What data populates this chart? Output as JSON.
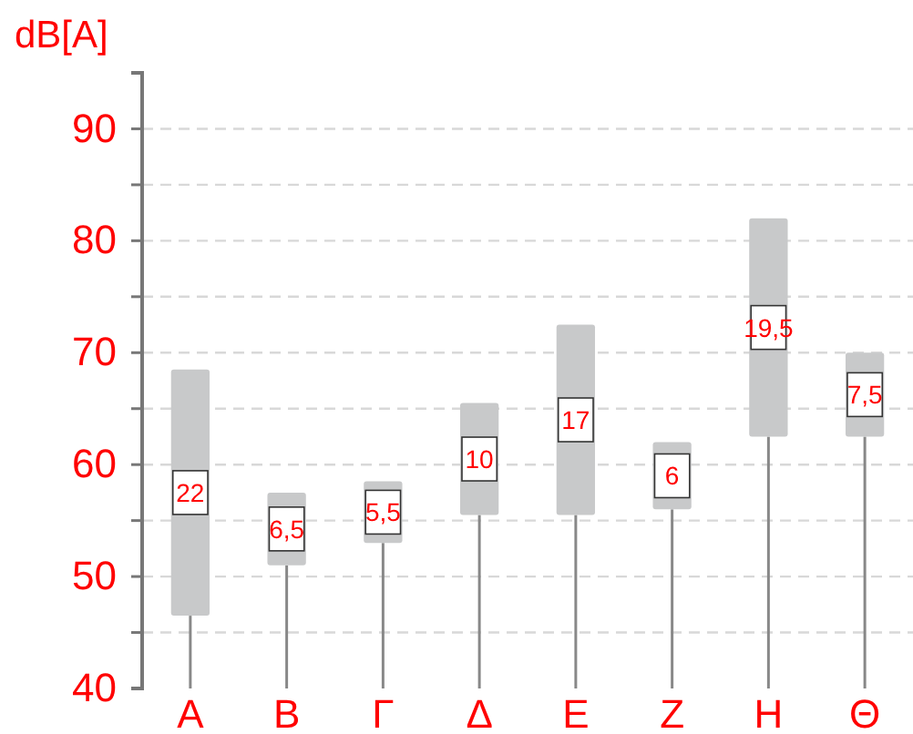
{
  "chart_data": {
    "type": "bar",
    "ylabel": "dB[A]",
    "categories": [
      "Α",
      "Β",
      "Γ",
      "Δ",
      "Ε",
      "Ζ",
      "Η",
      "Θ"
    ],
    "base": [
      46.5,
      51,
      53,
      55.5,
      55.5,
      56,
      62.5,
      62.5
    ],
    "values": [
      22,
      6.5,
      5.5,
      10,
      17,
      6,
      19.5,
      7.5
    ],
    "value_labels": [
      "22",
      "6,5",
      "5,5",
      "10",
      "17",
      "6",
      "19,5",
      "7,5"
    ],
    "data_labels": true,
    "color": "#c8c9ca",
    "ylim": [
      40,
      95
    ],
    "yticks": [
      40,
      {
        "value": 45,
        "label": null
      },
      50,
      {
        "value": 55,
        "label": null
      },
      60,
      {
        "value": 65,
        "label": null
      },
      70,
      {
        "value": 75,
        "label": null
      },
      80,
      {
        "value": 85,
        "label": null
      },
      90
    ],
    "grid": "y"
  }
}
